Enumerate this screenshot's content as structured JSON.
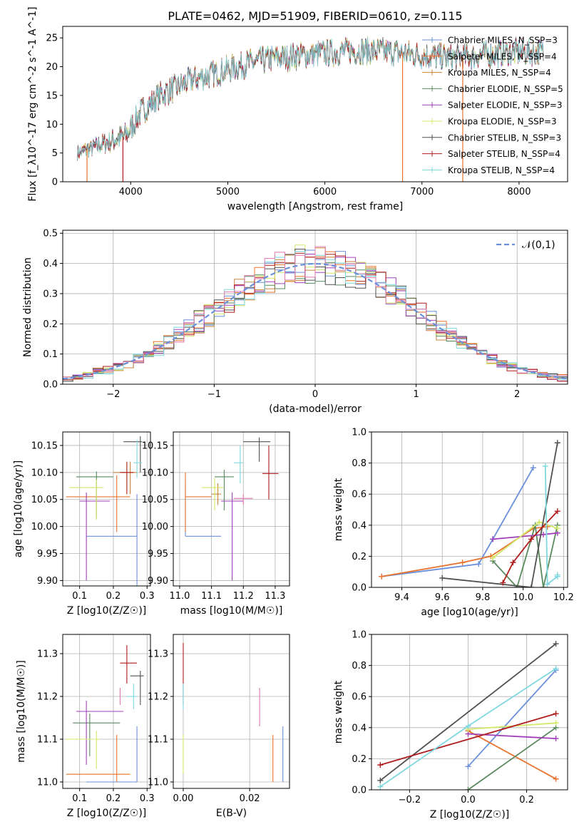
{
  "colors": {
    "Chabrier MILES": "#6a8fdb",
    "Salpeter MILES": "#e8732f",
    "Kroupa MILES": "#c8823a",
    "Chabrier ELODIE": "#5a8a5e",
    "Salpeter ELODIE": "#a040b8",
    "Kroupa ELODIE": "#d2e86a",
    "Chabrier STELIB": "#505050",
    "Salpeter STELIB": "#b01c1c",
    "Kroupa STELIB": "#7fd8e0",
    "Extra": "#e078b0"
  },
  "chart_data": [
    {
      "id": "spectrum",
      "type": "line",
      "title": "PLATE=0462, MJD=51909, FIBERID=0610, z=0.115",
      "xlabel": "wavelength [Angstrom, rest frame]",
      "ylabel": "Flux [f_λ10^-17 erg cm^-2 s^-1 A^-1]",
      "xlim": [
        3300,
        8500
      ],
      "ylim": [
        0,
        27
      ],
      "xticks": [
        4000,
        5000,
        6000,
        7000,
        8000
      ],
      "yticks": [
        0,
        5,
        10,
        15,
        20,
        25
      ],
      "grid": false,
      "legend_position": "right",
      "continuum": {
        "x": [
          3450,
          3700,
          3950,
          4100,
          4300,
          4600,
          4900,
          5200,
          5500,
          5800,
          6100,
          6400,
          6700,
          7000,
          7300,
          7600,
          7900,
          8250
        ],
        "y": [
          5,
          6.5,
          8,
          12,
          15,
          17.5,
          19,
          20.5,
          21.5,
          22,
          22.5,
          22.8,
          22.5,
          22,
          21.5,
          22,
          22.5,
          22.5
        ]
      },
      "series": [
        {
          "name": "Chabrier MILES, N_SSP=3",
          "color_key": "Chabrier MILES"
        },
        {
          "name": "Salpeter MILES, N_SSP=4",
          "color_key": "Salpeter MILES"
        },
        {
          "name": "Kroupa MILES, N_SSP=4",
          "color_key": "Kroupa MILES"
        },
        {
          "name": "Chabrier ELODIE, N_SSP=5",
          "color_key": "Chabrier ELODIE"
        },
        {
          "name": "Salpeter ELODIE, N_SSP=3",
          "color_key": "Salpeter ELODIE"
        },
        {
          "name": "Kroupa ELODIE, N_SSP=3",
          "color_key": "Kroupa ELODIE"
        },
        {
          "name": "Chabrier STELIB, N_SSP=3",
          "color_key": "Chabrier STELIB"
        },
        {
          "name": "Salpeter STELIB, N_SSP=4",
          "color_key": "Salpeter STELIB"
        },
        {
          "name": "Kroupa STELIB, N_SSP=4",
          "color_key": "Kroupa STELIB"
        }
      ]
    },
    {
      "id": "residuals",
      "type": "histogram",
      "xlabel": "(data-model)/error",
      "ylabel": "Normed distribution",
      "xlim": [
        -2.5,
        2.5
      ],
      "ylim": [
        0,
        0.51
      ],
      "xticks": [
        -2,
        -1,
        0,
        1,
        2
      ],
      "yticks": [
        0.0,
        0.1,
        0.2,
        0.3,
        0.4,
        0.5
      ],
      "grid": true,
      "legend": "𝒩(0,1)",
      "legend_position": "top-right",
      "series_colors": [
        "Chabrier MILES",
        "Salpeter MILES",
        "Kroupa MILES",
        "Chabrier ELODIE",
        "Salpeter ELODIE",
        "Kroupa ELODIE",
        "Chabrier STELIB",
        "Salpeter STELIB",
        "Kroupa STELIB",
        "Extra"
      ]
    },
    {
      "id": "age_vs_Z",
      "type": "errorbar",
      "xlabel": "Z [log10(Z/Z☉)]",
      "ylabel": "age  [log10(age/yr)]",
      "xlim": [
        0.05,
        0.31
      ],
      "ylim": [
        9.89,
        10.175
      ],
      "xticks": [
        0.1,
        0.2,
        0.3
      ],
      "yticks": [
        9.9,
        9.95,
        10.0,
        10.05,
        10.1,
        10.15
      ],
      "grid": true,
      "points": [
        {
          "c": "Chabrier MILES",
          "x": 0.27,
          "xl": 0.12,
          "xh": 0.27,
          "y": 9.982,
          "yl": 9.88,
          "yh": 10.06
        },
        {
          "c": "Salpeter MILES",
          "x": 0.21,
          "xl": 0.06,
          "xh": 0.25,
          "y": 10.055,
          "yl": 9.99,
          "yh": 10.095
        },
        {
          "c": "Kroupa MILES",
          "x": 0.25,
          "xl": 0.2,
          "xh": 0.27,
          "y": 10.1,
          "yl": 10.06,
          "yh": 10.12
        },
        {
          "c": "Chabrier ELODIE",
          "x": 0.15,
          "xl": 0.09,
          "xh": 0.2,
          "y": 10.092,
          "yl": 10.015,
          "yh": 10.102
        },
        {
          "c": "Salpeter ELODIE",
          "x": 0.12,
          "xl": 0.1,
          "xh": 0.19,
          "y": 10.047,
          "yl": 9.9,
          "yh": 10.063
        },
        {
          "c": "Kroupa ELODIE",
          "x": 0.15,
          "xl": 0.07,
          "xh": 0.17,
          "y": 10.072,
          "yl": 10.013,
          "yh": 10.087
        },
        {
          "c": "Chabrier STELIB",
          "x": 0.28,
          "xl": 0.23,
          "xh": 0.285,
          "y": 10.157,
          "yl": 10.1,
          "yh": 10.167
        },
        {
          "c": "Salpeter STELIB",
          "x": 0.24,
          "xl": 0.22,
          "xh": 0.26,
          "y": 10.1,
          "yl": 10.06,
          "yh": 10.12
        },
        {
          "c": "Kroupa STELIB",
          "x": 0.27,
          "xl": 0.26,
          "xh": 0.285,
          "y": 10.118,
          "yl": 10.09,
          "yh": 10.16
        }
      ]
    },
    {
      "id": "age_vs_mass",
      "type": "errorbar",
      "xlabel": "mass [log10(M/M☉)]",
      "ylabel": "",
      "xlim": [
        10.98,
        11.345
      ],
      "ylim": [
        9.89,
        10.175
      ],
      "xticks": [
        11.0,
        11.1,
        11.2,
        11.3
      ],
      "yticks": [
        9.9,
        9.95,
        10.0,
        10.05,
        10.1,
        10.15
      ],
      "grid": true,
      "points": [
        {
          "c": "Chabrier MILES",
          "x": 11.018,
          "xl": 11.018,
          "xh": 11.13,
          "y": 9.982,
          "yl": 9.982,
          "yh": 10.08
        },
        {
          "c": "Salpeter MILES",
          "x": 11.018,
          "xl": 11.018,
          "xh": 11.1,
          "y": 10.055,
          "yl": 9.99,
          "yh": 10.1
        },
        {
          "c": "Kroupa MILES",
          "x": 11.12,
          "xl": 11.1,
          "xh": 11.13,
          "y": 10.06,
          "yl": 10.04,
          "yh": 10.08
        },
        {
          "c": "Chabrier ELODIE",
          "x": 11.14,
          "xl": 11.11,
          "xh": 11.17,
          "y": 10.092,
          "yl": 10.03,
          "yh": 10.105
        },
        {
          "c": "Salpeter ELODIE",
          "x": 11.165,
          "xl": 11.13,
          "xh": 11.2,
          "y": 10.047,
          "yl": 9.9,
          "yh": 10.063
        },
        {
          "c": "Kroupa ELODIE",
          "x": 11.11,
          "xl": 11.07,
          "xh": 11.14,
          "y": 10.072,
          "yl": 10.03,
          "yh": 10.09
        },
        {
          "c": "Chabrier STELIB",
          "x": 11.25,
          "xl": 11.2,
          "xh": 11.285,
          "y": 10.157,
          "yl": 10.12,
          "yh": 10.165
        },
        {
          "c": "Salpeter STELIB",
          "x": 11.28,
          "xl": 11.26,
          "xh": 11.31,
          "y": 10.098,
          "yl": 10.05,
          "yh": 10.15
        },
        {
          "c": "Kroupa STELIB",
          "x": 11.19,
          "xl": 11.17,
          "xh": 11.2,
          "y": 10.118,
          "yl": 10.08,
          "yh": 10.15
        },
        {
          "c": "Extra",
          "x": 11.2,
          "xl": 11.17,
          "xh": 11.23,
          "y": 10.052,
          "yl": 10.04,
          "yh": 10.06
        }
      ]
    },
    {
      "id": "weight_vs_age",
      "type": "line",
      "xlabel": "age  [log10(age/yr)]",
      "ylabel": "mass weight",
      "xlim": [
        9.25,
        10.22
      ],
      "ylim": [
        0,
        1.0
      ],
      "xticks": [
        9.4,
        9.6,
        9.8,
        10.0,
        10.2
      ],
      "yticks": [
        0.0,
        0.2,
        0.4,
        0.6,
        0.8,
        1.0
      ],
      "grid": true,
      "series": [
        {
          "c": "Chabrier MILES",
          "x": [
            9.3,
            9.78,
            9.85,
            10.05
          ],
          "y": [
            0.07,
            0.15,
            0.31,
            0.77
          ]
        },
        {
          "c": "Salpeter MILES",
          "x": [
            9.3,
            9.7,
            9.84,
            10.05,
            10.12
          ],
          "y": [
            0.07,
            0.16,
            0.2,
            0.38,
            0.39
          ]
        },
        {
          "c": "Chabrier ELODIE",
          "x": [
            9.85,
            9.97,
            10.06,
            10.1,
            10.17
          ],
          "y": [
            0.17,
            0.0,
            0.4,
            0.0,
            0.4
          ]
        },
        {
          "c": "Salpeter ELODIE",
          "x": [
            9.85,
            10.1,
            10.17
          ],
          "y": [
            0.31,
            0.34,
            0.35
          ]
        },
        {
          "c": "Kroupa ELODIE",
          "x": [
            9.85,
            10.08,
            10.17
          ],
          "y": [
            0.19,
            0.42,
            0.38
          ]
        },
        {
          "c": "Chabrier STELIB",
          "x": [
            9.6,
            10.04,
            10.17
          ],
          "y": [
            0.06,
            0.0,
            0.93
          ]
        },
        {
          "c": "Salpeter STELIB",
          "x": [
            9.9,
            9.95,
            10.04,
            10.17
          ],
          "y": [
            0.03,
            0.16,
            0.31,
            0.49
          ]
        },
        {
          "c": "Kroupa STELIB",
          "x": [
            10.11,
            10.12,
            10.17,
            10.17
          ],
          "y": [
            0.78,
            0.02,
            0.07,
            0.08
          ]
        }
      ]
    },
    {
      "id": "mass_vs_Z",
      "type": "errorbar",
      "xlabel": "Z [log10(Z/Z☉)]",
      "ylabel": "mass [log10(M/M☉)]",
      "xlim": [
        0.05,
        0.31
      ],
      "ylim": [
        10.985,
        11.345
      ],
      "xticks": [
        0.1,
        0.2,
        0.3
      ],
      "yticks": [
        11.0,
        11.1,
        11.2,
        11.3
      ],
      "grid": true,
      "points": [
        {
          "c": "Chabrier MILES",
          "x": 0.27,
          "xl": 0.12,
          "xh": 0.27,
          "y": 11.0,
          "yl": 11.0,
          "yh": 11.13
        },
        {
          "c": "Salpeter MILES",
          "x": 0.21,
          "xl": 0.06,
          "xh": 0.25,
          "y": 11.018,
          "yl": 11.0,
          "yh": 11.11
        },
        {
          "c": "Chabrier ELODIE",
          "x": 0.13,
          "xl": 0.08,
          "xh": 0.22,
          "y": 11.138,
          "yl": 11.06,
          "yh": 11.16
        },
        {
          "c": "Salpeter ELODIE",
          "x": 0.12,
          "xl": 0.09,
          "xh": 0.23,
          "y": 11.165,
          "yl": 11.04,
          "yh": 11.19
        },
        {
          "c": "Kroupa ELODIE",
          "x": 0.15,
          "xl": 0.06,
          "xh": 0.16,
          "y": 11.1,
          "yl": 11.03,
          "yh": 11.12
        },
        {
          "c": "Chabrier STELIB",
          "x": 0.28,
          "xl": 0.25,
          "xh": 0.29,
          "y": 11.248,
          "yl": 11.18,
          "yh": 11.26
        },
        {
          "c": "Salpeter STELIB",
          "x": 0.24,
          "xl": 0.22,
          "xh": 0.27,
          "y": 11.278,
          "yl": 11.23,
          "yh": 11.32
        },
        {
          "c": "Kroupa STELIB",
          "x": 0.26,
          "xl": 0.24,
          "xh": 0.27,
          "y": 11.2,
          "yl": 11.17,
          "yh": 11.23
        },
        {
          "c": "Extra",
          "x": 0.22,
          "xl": 0.22,
          "xh": 0.22,
          "y": 11.2,
          "yl": 11.18,
          "yh": 11.22
        }
      ]
    },
    {
      "id": "mass_vs_ebv",
      "type": "errorbar",
      "xlabel": "E(B-V)",
      "ylabel": "",
      "xlim": [
        -0.003,
        0.032
      ],
      "ylim": [
        10.985,
        11.345
      ],
      "xticks": [
        0.0,
        0.02
      ],
      "yticks": [
        11.0,
        11.1,
        11.2,
        11.3
      ],
      "grid": true,
      "points": [
        {
          "c": "Salpeter STELIB",
          "x": 0.0,
          "xl": 0.0,
          "xh": 0.0,
          "y": 11.25,
          "yl": 11.18,
          "yh": 11.325
        },
        {
          "c": "Kroupa STELIB",
          "x": 0.0,
          "xl": 0.0,
          "xh": 0.0,
          "y": 11.2,
          "yl": 11.17,
          "yh": 11.23
        },
        {
          "c": "Kroupa ELODIE",
          "x": 0.0,
          "xl": 0.0,
          "xh": 0.0,
          "y": 11.07,
          "yl": 11.02,
          "yh": 11.11
        },
        {
          "c": "Extra",
          "x": 0.023,
          "xl": 0.023,
          "xh": 0.023,
          "y": 11.175,
          "yl": 11.13,
          "yh": 11.22
        },
        {
          "c": "Salpeter MILES",
          "x": 0.027,
          "xl": 0.027,
          "xh": 0.027,
          "y": 11.05,
          "yl": 11.0,
          "yh": 11.11
        },
        {
          "c": "Chabrier MILES",
          "x": 0.03,
          "xl": 0.03,
          "xh": 0.03,
          "y": 11.065,
          "yl": 11.0,
          "yh": 11.13
        }
      ]
    },
    {
      "id": "weight_vs_Z",
      "type": "line",
      "xlabel": "Z [log10(Z/Z☉)]",
      "ylabel": "mass weight",
      "xlim": [
        -0.33,
        0.34
      ],
      "ylim": [
        0,
        1.0
      ],
      "xticks": [
        -0.2,
        0.0,
        0.2
      ],
      "yticks": [
        0.0,
        0.2,
        0.4,
        0.6,
        0.8,
        1.0
      ],
      "grid": true,
      "series": [
        {
          "c": "Chabrier MILES",
          "x": [
            0.0,
            0.3
          ],
          "y": [
            0.15,
            0.77
          ]
        },
        {
          "c": "Salpeter MILES",
          "x": [
            0.0,
            0.3
          ],
          "y": [
            0.38,
            0.07
          ]
        },
        {
          "c": "Chabrier ELODIE",
          "x": [
            0.0,
            0.3
          ],
          "y": [
            0.0,
            0.4
          ]
        },
        {
          "c": "Salpeter ELODIE",
          "x": [
            0.0,
            0.3
          ],
          "y": [
            0.36,
            0.33
          ]
        },
        {
          "c": "Kroupa ELODIE",
          "x": [
            0.0,
            0.3
          ],
          "y": [
            0.39,
            0.43
          ]
        },
        {
          "c": "Chabrier STELIB",
          "x": [
            -0.3,
            0.3
          ],
          "y": [
            0.06,
            0.94
          ]
        },
        {
          "c": "Salpeter STELIB",
          "x": [
            -0.3,
            0.3
          ],
          "y": [
            0.16,
            0.49
          ]
        },
        {
          "c": "Kroupa STELIB",
          "x": [
            -0.3,
            0.0,
            0.3
          ],
          "y": [
            0.02,
            0.41,
            0.78
          ]
        }
      ]
    }
  ]
}
